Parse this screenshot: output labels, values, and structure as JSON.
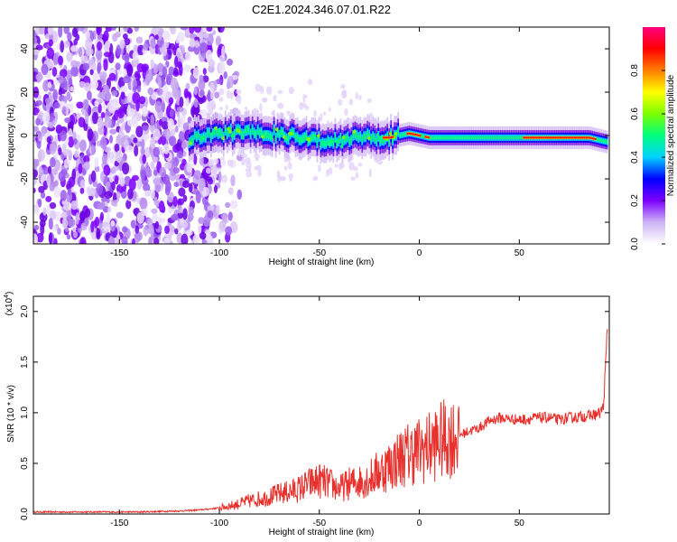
{
  "title": "C2E1.2024.346.07.01.R22",
  "chart_data": [
    {
      "type": "heatmap",
      "xlabel": "Height of straight line (km)",
      "ylabel": "Frequency (Hz)",
      "xlim": [
        -193,
        95
      ],
      "ylim": [
        -50,
        50
      ],
      "xticks": [
        -150,
        -100,
        -50,
        0,
        50
      ],
      "xtick_labels": [
        "-150",
        "-100",
        "-50",
        "0",
        "50"
      ],
      "yticks": [
        -40,
        -20,
        0,
        20,
        40
      ],
      "ytick_labels": [
        "-40",
        "-20",
        "0",
        "20",
        "40"
      ],
      "colorbar": {
        "label": "Normalized spectral amplitude",
        "range": [
          0,
          1
        ],
        "ticks": [
          0,
          0.2,
          0.4,
          0.6,
          0.8
        ],
        "tick_labels": [
          "0.0",
          "0.2",
          "0.4",
          "0.6",
          "0.8"
        ],
        "colors": [
          "#ffffff",
          "#cdb4f5",
          "#7b00ff",
          "#0000ff",
          "#00d2ff",
          "#00ff7f",
          "#7cff00",
          "#ffff00",
          "#ff7f00",
          "#ff0000",
          "#ff007f"
        ]
      },
      "ridge": {
        "description_free": true,
        "x": [
          -115,
          -105,
          -95,
          -85,
          -75,
          -65,
          -55,
          -45,
          -35,
          -25,
          -15,
          -5,
          5,
          15,
          25,
          35,
          45,
          55,
          65,
          75,
          85,
          94
        ],
        "y": [
          -2,
          0,
          1,
          2,
          1,
          0,
          -2,
          -3,
          -1,
          -1,
          -1,
          1,
          -1,
          -1,
          -1,
          -1,
          -1,
          -1,
          -1,
          -1,
          -1,
          -3
        ]
      },
      "noise_extent_x": [
        -193,
        -108
      ]
    },
    {
      "type": "line",
      "xlabel": "Height of straight line (km)",
      "ylabel": "SNR (10 * v/v)",
      "multiplier": "(x10",
      "multiplier_exp": "4",
      "multiplier_close": ")",
      "xlim": [
        -193,
        95
      ],
      "ylim": [
        0,
        2.15
      ],
      "xticks": [
        -150,
        -100,
        -50,
        0,
        50
      ],
      "xtick_labels": [
        "-150",
        "-100",
        "-50",
        "0",
        "50"
      ],
      "yticks": [
        0,
        0.5,
        1.0,
        1.5,
        2.0
      ],
      "ytick_labels": [
        "0.0",
        "0.5",
        "1.0",
        "1.5",
        "2.0"
      ],
      "color": "#e8302c",
      "series": [
        {
          "x": [
            -193,
            -180,
            -160,
            -140,
            -120,
            -110,
            -100,
            -95,
            -90,
            -85,
            -80,
            -75,
            -70,
            -65,
            -60,
            -55,
            -50,
            -45,
            -40,
            -35,
            -30,
            -25,
            -20,
            -15,
            -10,
            -5,
            0,
            5,
            10,
            15,
            20,
            25,
            30,
            35,
            40,
            45,
            50,
            55,
            60,
            65,
            70,
            75,
            80,
            85,
            90,
            92,
            93,
            94
          ],
          "y": [
            0.02,
            0.02,
            0.02,
            0.02,
            0.03,
            0.04,
            0.06,
            0.08,
            0.1,
            0.13,
            0.15,
            0.17,
            0.2,
            0.22,
            0.25,
            0.3,
            0.33,
            0.3,
            0.25,
            0.3,
            0.32,
            0.35,
            0.42,
            0.48,
            0.55,
            0.6,
            0.63,
            0.66,
            0.72,
            0.75,
            0.78,
            0.82,
            0.85,
            0.92,
            0.95,
            0.94,
            0.93,
            0.94,
            0.95,
            0.95,
            0.93,
            0.95,
            0.96,
            0.97,
            0.99,
            1.05,
            1.4,
            1.8
          ]
        }
      ]
    }
  ]
}
